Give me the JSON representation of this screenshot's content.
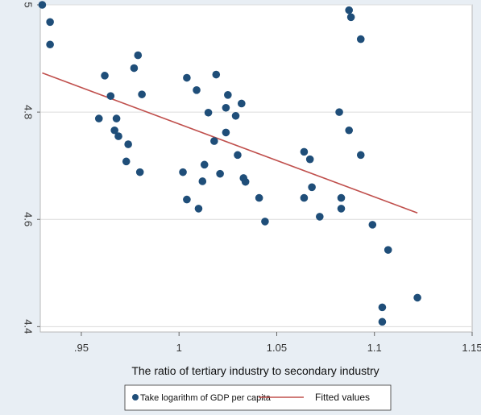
{
  "chart_data": {
    "type": "scatter",
    "title": "",
    "xlabel": "The ratio of tertiary industry to secondary industry",
    "ylabel": "",
    "xlim": [
      0.929,
      1.15
    ],
    "ylim": [
      4.39,
      5.0
    ],
    "xticks": [
      0.95,
      1.0,
      1.05,
      1.1,
      1.15
    ],
    "xtick_labels": [
      ".95",
      "1",
      "1.05",
      "1.1",
      "1.15"
    ],
    "yticks": [
      4.4,
      4.6,
      4.8,
      5.0
    ],
    "ytick_labels": [
      "4.4",
      "4.6",
      "4.8",
      "5"
    ],
    "grid": true,
    "legend_position": "bottom",
    "series": [
      {
        "name": "Take logarithm of GDP per capita",
        "kind": "scatter",
        "color": "#1f4e79",
        "points": [
          [
            0.93,
            5.0
          ],
          [
            0.934,
            4.968
          ],
          [
            0.934,
            4.926
          ],
          [
            0.962,
            4.868
          ],
          [
            0.965,
            4.83
          ],
          [
            0.977,
            4.882
          ],
          [
            0.979,
            4.906
          ],
          [
            0.981,
            4.833
          ],
          [
            0.959,
            4.788
          ],
          [
            0.968,
            4.788
          ],
          [
            0.967,
            4.766
          ],
          [
            0.969,
            4.755
          ],
          [
            0.974,
            4.74
          ],
          [
            0.973,
            4.708
          ],
          [
            0.98,
            4.688
          ],
          [
            1.004,
            4.864
          ],
          [
            1.009,
            4.841
          ],
          [
            1.019,
            4.87
          ],
          [
            1.015,
            4.799
          ],
          [
            1.025,
            4.832
          ],
          [
            1.024,
            4.808
          ],
          [
            1.029,
            4.793
          ],
          [
            1.032,
            4.816
          ],
          [
            1.018,
            4.746
          ],
          [
            1.024,
            4.762
          ],
          [
            1.03,
            4.72
          ],
          [
            1.013,
            4.702
          ],
          [
            1.021,
            4.685
          ],
          [
            1.002,
            4.688
          ],
          [
            1.012,
            4.671
          ],
          [
            1.004,
            4.637
          ],
          [
            1.01,
            4.62
          ],
          [
            1.033,
            4.677
          ],
          [
            1.034,
            4.67
          ],
          [
            1.041,
            4.64
          ],
          [
            1.044,
            4.596
          ],
          [
            1.064,
            4.726
          ],
          [
            1.067,
            4.712
          ],
          [
            1.068,
            4.66
          ],
          [
            1.064,
            4.64
          ],
          [
            1.072,
            4.605
          ],
          [
            1.083,
            4.64
          ],
          [
            1.083,
            4.62
          ],
          [
            1.082,
            4.8
          ],
          [
            1.087,
            4.99
          ],
          [
            1.088,
            4.977
          ],
          [
            1.093,
            4.936
          ],
          [
            1.087,
            4.766
          ],
          [
            1.093,
            4.72
          ],
          [
            1.099,
            4.59
          ],
          [
            1.107,
            4.543
          ],
          [
            1.104,
            4.436
          ],
          [
            1.104,
            4.409
          ],
          [
            1.122,
            4.454
          ]
        ]
      },
      {
        "name": "Fitted values",
        "kind": "line",
        "color": "#c0504d",
        "points": [
          [
            0.93,
            4.873
          ],
          [
            1.122,
            4.612
          ]
        ]
      }
    ]
  }
}
